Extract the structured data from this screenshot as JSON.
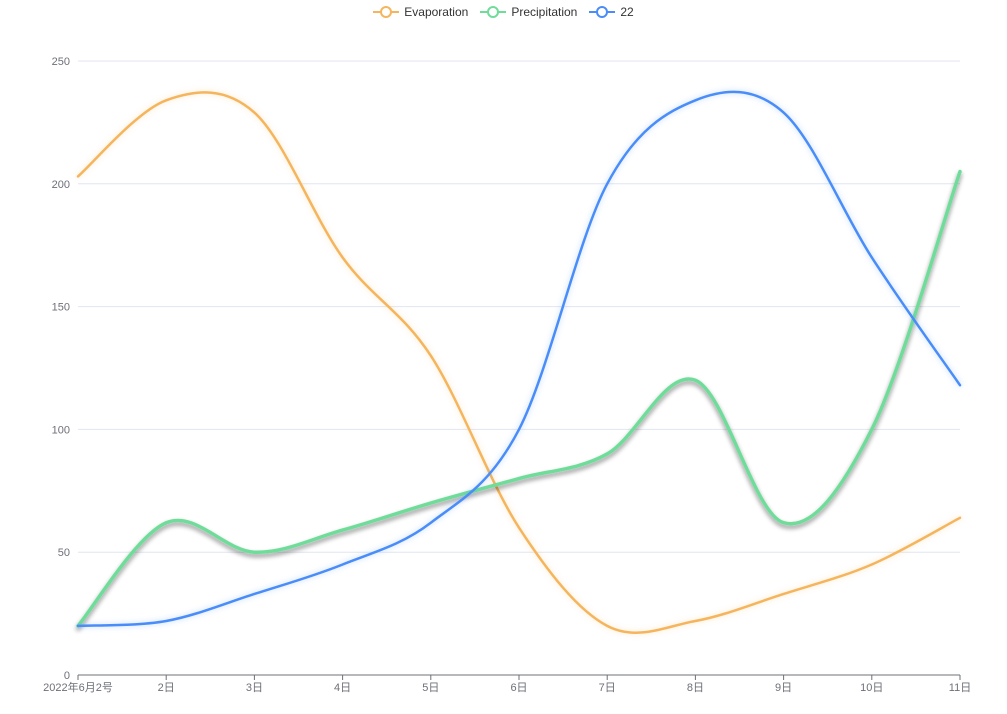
{
  "chart_data": {
    "type": "line",
    "smooth": true,
    "categories": [
      "2022年6月2号",
      "2日",
      "3日",
      "4日",
      "5日",
      "6日",
      "7日",
      "8日",
      "9日",
      "10日",
      "11日"
    ],
    "series": [
      {
        "name": "Evaporation",
        "color": "#f5b55c",
        "values": [
          203,
          234,
          229,
          170,
          130,
          60,
          20,
          22,
          33,
          45,
          64
        ]
      },
      {
        "name": "Precipitation",
        "color": "#6fdc9a",
        "shadow": true,
        "values": [
          20,
          62,
          50,
          59,
          70,
          80,
          90,
          120,
          62,
          100,
          205
        ]
      },
      {
        "name": "22",
        "color": "#4a8df8",
        "values": [
          20,
          22,
          33,
          45,
          62,
          100,
          200,
          234,
          229,
          170,
          118
        ]
      }
    ],
    "ylim": [
      0,
      250
    ],
    "yticks": [
      0,
      50,
      100,
      150,
      200,
      250
    ],
    "grid": true,
    "legend_position": "top-center",
    "xlabel": "",
    "ylabel": ""
  }
}
